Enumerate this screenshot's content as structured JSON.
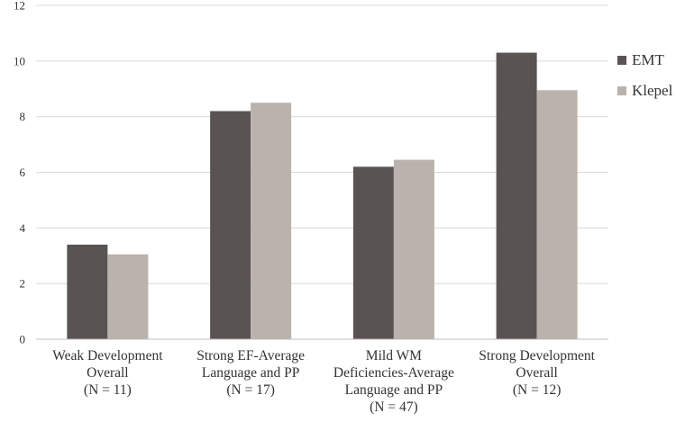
{
  "chart_data": {
    "type": "bar",
    "title": "",
    "xlabel": "",
    "ylabel": "",
    "ylim": [
      0,
      12
    ],
    "yticks": [
      0,
      2,
      4,
      6,
      8,
      10,
      12
    ],
    "grid": true,
    "legend_position": "right",
    "categories": [
      [
        "Weak Development",
        "Overall",
        "(N = 11)"
      ],
      [
        "Strong EF-Average",
        "Language and PP",
        "(N = 17)"
      ],
      [
        "Mild WM",
        "Deficiencies-Average",
        "Language and PP",
        "(N = 47)"
      ],
      [
        "Strong Development",
        "Overall",
        "(N = 12)"
      ]
    ],
    "series": [
      {
        "name": "EMT",
        "color": "#595352",
        "values": [
          3.4,
          8.2,
          6.2,
          10.3
        ]
      },
      {
        "name": "Klepel",
        "color": "#bab2ad",
        "values": [
          3.05,
          8.5,
          6.45,
          8.95
        ]
      }
    ],
    "gridline_color": "#d9d9d9",
    "axis_color": "#bfbfbf"
  }
}
